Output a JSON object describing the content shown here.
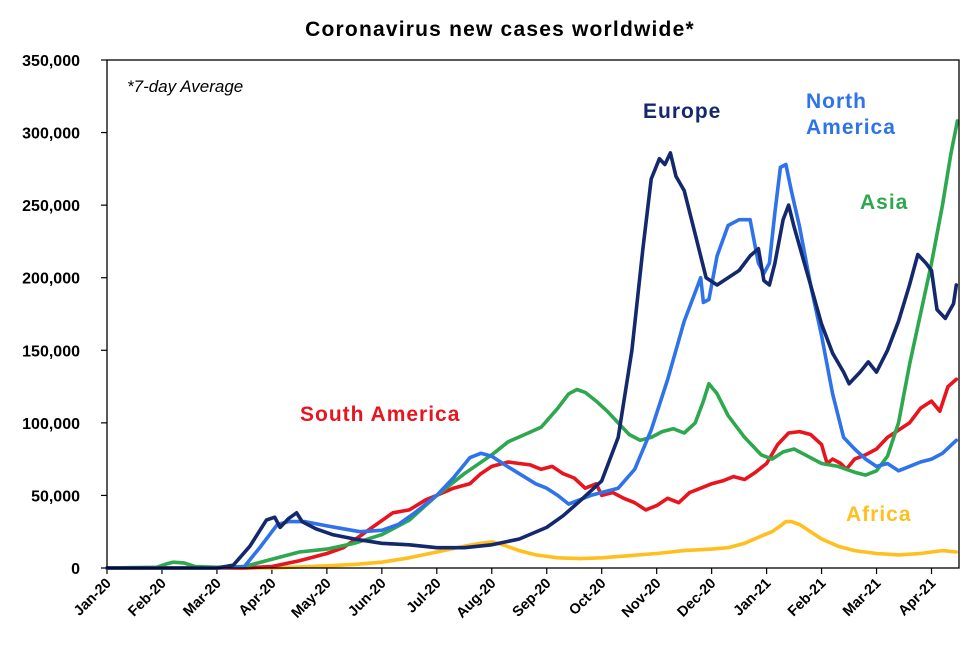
{
  "chart_data": {
    "type": "line",
    "title": "Coronavirus new cases worldwide*",
    "annotation": "*7-day Average",
    "ylim": [
      0,
      350000
    ],
    "yticks": [
      {
        "value": 0,
        "label": "0"
      },
      {
        "value": 50000,
        "label": "50,000"
      },
      {
        "value": 100000,
        "label": "100,000"
      },
      {
        "value": 150000,
        "label": "150,000"
      },
      {
        "value": 200000,
        "label": "200,000"
      },
      {
        "value": 250000,
        "label": "250,000"
      },
      {
        "value": 300000,
        "label": "300,000"
      },
      {
        "value": 350000,
        "label": "350,000"
      }
    ],
    "xlim": [
      0,
      15.5
    ],
    "xticks": [
      {
        "value": 0,
        "label": "Jan-20"
      },
      {
        "value": 1,
        "label": "Feb-20"
      },
      {
        "value": 2,
        "label": "Mar-20"
      },
      {
        "value": 3,
        "label": "Apr-20"
      },
      {
        "value": 4,
        "label": "May-20"
      },
      {
        "value": 5,
        "label": "Jun-20"
      },
      {
        "value": 6,
        "label": "Jul-20"
      },
      {
        "value": 7,
        "label": "Aug-20"
      },
      {
        "value": 8,
        "label": "Sep-20"
      },
      {
        "value": 9,
        "label": "Oct-20"
      },
      {
        "value": 10,
        "label": "Nov-20"
      },
      {
        "value": 11,
        "label": "Dec-20"
      },
      {
        "value": 12,
        "label": "Jan-21"
      },
      {
        "value": 13,
        "label": "Feb-21"
      },
      {
        "value": 14,
        "label": "Mar-21"
      },
      {
        "value": 15,
        "label": "Apr-21"
      }
    ],
    "series": [
      {
        "name": "Europe",
        "color": "#14286e",
        "points": [
          [
            0,
            0
          ],
          [
            1,
            0
          ],
          [
            2,
            0
          ],
          [
            2.3,
            2000
          ],
          [
            2.6,
            15000
          ],
          [
            2.9,
            33000
          ],
          [
            3.05,
            35000
          ],
          [
            3.15,
            28000
          ],
          [
            3.3,
            34000
          ],
          [
            3.45,
            38000
          ],
          [
            3.55,
            32000
          ],
          [
            3.8,
            27000
          ],
          [
            4.1,
            23000
          ],
          [
            4.5,
            20000
          ],
          [
            5,
            17000
          ],
          [
            5.5,
            16000
          ],
          [
            6,
            14000
          ],
          [
            6.5,
            14000
          ],
          [
            7,
            16000
          ],
          [
            7.5,
            20000
          ],
          [
            8,
            28000
          ],
          [
            8.3,
            36000
          ],
          [
            8.6,
            46000
          ],
          [
            9,
            60000
          ],
          [
            9.3,
            90000
          ],
          [
            9.55,
            150000
          ],
          [
            9.75,
            220000
          ],
          [
            9.9,
            268000
          ],
          [
            10.05,
            282000
          ],
          [
            10.15,
            278000
          ],
          [
            10.25,
            286000
          ],
          [
            10.35,
            270000
          ],
          [
            10.5,
            260000
          ],
          [
            10.7,
            230000
          ],
          [
            10.9,
            200000
          ],
          [
            11.1,
            195000
          ],
          [
            11.3,
            200000
          ],
          [
            11.5,
            205000
          ],
          [
            11.7,
            215000
          ],
          [
            11.85,
            220000
          ],
          [
            11.95,
            198000
          ],
          [
            12.05,
            195000
          ],
          [
            12.15,
            210000
          ],
          [
            12.3,
            240000
          ],
          [
            12.4,
            250000
          ],
          [
            12.5,
            235000
          ],
          [
            12.65,
            215000
          ],
          [
            12.8,
            195000
          ],
          [
            13,
            168000
          ],
          [
            13.2,
            148000
          ],
          [
            13.4,
            135000
          ],
          [
            13.5,
            127000
          ],
          [
            13.7,
            135000
          ],
          [
            13.85,
            142000
          ],
          [
            14,
            135000
          ],
          [
            14.2,
            150000
          ],
          [
            14.4,
            170000
          ],
          [
            14.6,
            195000
          ],
          [
            14.75,
            216000
          ],
          [
            14.9,
            210000
          ],
          [
            15,
            205000
          ],
          [
            15.1,
            178000
          ],
          [
            15.25,
            172000
          ],
          [
            15.4,
            182000
          ],
          [
            15.45,
            195000
          ]
        ]
      },
      {
        "name": "North America",
        "color": "#2e73ea",
        "points": [
          [
            0,
            0
          ],
          [
            2,
            0
          ],
          [
            2.5,
            1000
          ],
          [
            2.8,
            15000
          ],
          [
            3,
            25000
          ],
          [
            3.1,
            30000
          ],
          [
            3.3,
            32000
          ],
          [
            3.6,
            32000
          ],
          [
            4,
            29000
          ],
          [
            4.3,
            27000
          ],
          [
            4.6,
            25000
          ],
          [
            5,
            26000
          ],
          [
            5.3,
            30000
          ],
          [
            5.6,
            38000
          ],
          [
            6,
            50000
          ],
          [
            6.3,
            62000
          ],
          [
            6.6,
            76000
          ],
          [
            6.8,
            79000
          ],
          [
            7,
            77000
          ],
          [
            7.2,
            72000
          ],
          [
            7.5,
            65000
          ],
          [
            7.8,
            58000
          ],
          [
            8,
            55000
          ],
          [
            8.2,
            50000
          ],
          [
            8.4,
            44000
          ],
          [
            8.6,
            47000
          ],
          [
            8.8,
            50000
          ],
          [
            9,
            52000
          ],
          [
            9.3,
            55000
          ],
          [
            9.6,
            68000
          ],
          [
            9.9,
            95000
          ],
          [
            10.2,
            130000
          ],
          [
            10.5,
            170000
          ],
          [
            10.7,
            190000
          ],
          [
            10.8,
            200000
          ],
          [
            10.85,
            183000
          ],
          [
            10.95,
            185000
          ],
          [
            11.1,
            215000
          ],
          [
            11.3,
            236000
          ],
          [
            11.5,
            240000
          ],
          [
            11.7,
            240000
          ],
          [
            11.85,
            210000
          ],
          [
            11.95,
            203000
          ],
          [
            12.05,
            210000
          ],
          [
            12.15,
            245000
          ],
          [
            12.25,
            276000
          ],
          [
            12.35,
            278000
          ],
          [
            12.45,
            260000
          ],
          [
            12.6,
            235000
          ],
          [
            12.8,
            195000
          ],
          [
            13,
            160000
          ],
          [
            13.2,
            120000
          ],
          [
            13.4,
            90000
          ],
          [
            13.6,
            82000
          ],
          [
            13.8,
            75000
          ],
          [
            14,
            70000
          ],
          [
            14.2,
            72000
          ],
          [
            14.4,
            67000
          ],
          [
            14.6,
            70000
          ],
          [
            14.8,
            73000
          ],
          [
            15,
            75000
          ],
          [
            15.2,
            79000
          ],
          [
            15.45,
            88000
          ]
        ]
      },
      {
        "name": "Asia",
        "color": "#2ea84e",
        "points": [
          [
            0,
            0
          ],
          [
            0.9,
            500
          ],
          [
            1.1,
            3000
          ],
          [
            1.2,
            4000
          ],
          [
            1.4,
            3500
          ],
          [
            1.6,
            1000
          ],
          [
            2,
            500
          ],
          [
            2.5,
            1000
          ],
          [
            3,
            6000
          ],
          [
            3.5,
            11000
          ],
          [
            4,
            13000
          ],
          [
            4.5,
            17000
          ],
          [
            5,
            23000
          ],
          [
            5.5,
            33000
          ],
          [
            6,
            50000
          ],
          [
            6.5,
            65000
          ],
          [
            7,
            78000
          ],
          [
            7.3,
            87000
          ],
          [
            7.6,
            92000
          ],
          [
            7.9,
            97000
          ],
          [
            8.2,
            110000
          ],
          [
            8.4,
            120000
          ],
          [
            8.55,
            123000
          ],
          [
            8.7,
            121000
          ],
          [
            8.9,
            115000
          ],
          [
            9.1,
            108000
          ],
          [
            9.3,
            100000
          ],
          [
            9.5,
            92000
          ],
          [
            9.7,
            88000
          ],
          [
            9.9,
            90000
          ],
          [
            10.1,
            94000
          ],
          [
            10.3,
            96000
          ],
          [
            10.5,
            93000
          ],
          [
            10.7,
            100000
          ],
          [
            10.85,
            115000
          ],
          [
            10.95,
            127000
          ],
          [
            11.1,
            120000
          ],
          [
            11.3,
            105000
          ],
          [
            11.6,
            90000
          ],
          [
            11.9,
            78000
          ],
          [
            12.1,
            75000
          ],
          [
            12.3,
            80000
          ],
          [
            12.5,
            82000
          ],
          [
            12.7,
            78000
          ],
          [
            13,
            72000
          ],
          [
            13.3,
            70000
          ],
          [
            13.6,
            66000
          ],
          [
            13.8,
            64000
          ],
          [
            14,
            67000
          ],
          [
            14.2,
            77000
          ],
          [
            14.4,
            100000
          ],
          [
            14.6,
            140000
          ],
          [
            14.8,
            175000
          ],
          [
            15,
            210000
          ],
          [
            15.2,
            250000
          ],
          [
            15.35,
            285000
          ],
          [
            15.47,
            308000
          ]
        ]
      },
      {
        "name": "South America",
        "color": "#e8141e",
        "points": [
          [
            0,
            0
          ],
          [
            2.5,
            0
          ],
          [
            3,
            1000
          ],
          [
            3.5,
            5000
          ],
          [
            4,
            10000
          ],
          [
            4.3,
            14000
          ],
          [
            4.6,
            22000
          ],
          [
            4.9,
            30000
          ],
          [
            5.2,
            38000
          ],
          [
            5.5,
            40000
          ],
          [
            5.8,
            47000
          ],
          [
            6,
            50000
          ],
          [
            6.3,
            55000
          ],
          [
            6.6,
            58000
          ],
          [
            6.8,
            65000
          ],
          [
            7,
            70000
          ],
          [
            7.3,
            73000
          ],
          [
            7.5,
            72000
          ],
          [
            7.7,
            71000
          ],
          [
            7.9,
            68000
          ],
          [
            8.1,
            70000
          ],
          [
            8.3,
            65000
          ],
          [
            8.5,
            62000
          ],
          [
            8.7,
            55000
          ],
          [
            8.9,
            58000
          ],
          [
            9,
            50000
          ],
          [
            9.2,
            52000
          ],
          [
            9.4,
            48000
          ],
          [
            9.6,
            45000
          ],
          [
            9.8,
            40000
          ],
          [
            10,
            43000
          ],
          [
            10.2,
            48000
          ],
          [
            10.4,
            45000
          ],
          [
            10.6,
            52000
          ],
          [
            10.8,
            55000
          ],
          [
            11,
            58000
          ],
          [
            11.2,
            60000
          ],
          [
            11.4,
            63000
          ],
          [
            11.6,
            61000
          ],
          [
            11.8,
            66000
          ],
          [
            12,
            72000
          ],
          [
            12.2,
            85000
          ],
          [
            12.4,
            93000
          ],
          [
            12.6,
            94000
          ],
          [
            12.8,
            92000
          ],
          [
            13,
            85000
          ],
          [
            13.1,
            72000
          ],
          [
            13.2,
            75000
          ],
          [
            13.35,
            72000
          ],
          [
            13.45,
            68000
          ],
          [
            13.6,
            75000
          ],
          [
            13.8,
            78000
          ],
          [
            14,
            82000
          ],
          [
            14.2,
            90000
          ],
          [
            14.4,
            95000
          ],
          [
            14.6,
            100000
          ],
          [
            14.8,
            110000
          ],
          [
            15,
            115000
          ],
          [
            15.15,
            108000
          ],
          [
            15.3,
            125000
          ],
          [
            15.45,
            130000
          ]
        ]
      },
      {
        "name": "Africa",
        "color": "#ffbf1f",
        "points": [
          [
            0,
            0
          ],
          [
            3,
            0
          ],
          [
            4,
            1500
          ],
          [
            4.5,
            2500
          ],
          [
            5,
            4000
          ],
          [
            5.5,
            7000
          ],
          [
            6,
            11000
          ],
          [
            6.5,
            15000
          ],
          [
            6.8,
            17000
          ],
          [
            7,
            18000
          ],
          [
            7.2,
            16000
          ],
          [
            7.5,
            12000
          ],
          [
            7.8,
            9000
          ],
          [
            8.2,
            7000
          ],
          [
            8.6,
            6500
          ],
          [
            9,
            7000
          ],
          [
            9.5,
            8500
          ],
          [
            10,
            10000
          ],
          [
            10.5,
            12000
          ],
          [
            11,
            13000
          ],
          [
            11.3,
            14000
          ],
          [
            11.6,
            17000
          ],
          [
            11.9,
            22000
          ],
          [
            12.1,
            25000
          ],
          [
            12.25,
            29000
          ],
          [
            12.35,
            32000
          ],
          [
            12.45,
            32000
          ],
          [
            12.6,
            30000
          ],
          [
            12.8,
            25000
          ],
          [
            13,
            20000
          ],
          [
            13.3,
            15000
          ],
          [
            13.6,
            12000
          ],
          [
            14,
            10000
          ],
          [
            14.4,
            9000
          ],
          [
            14.8,
            10000
          ],
          [
            15,
            11000
          ],
          [
            15.2,
            12000
          ],
          [
            15.45,
            11000
          ]
        ]
      }
    ],
    "labels": [
      {
        "text": "Europe",
        "color": "#14286e"
      },
      {
        "text": "North",
        "color": "#2e73ea"
      },
      {
        "text": "America",
        "color": "#2e73ea"
      },
      {
        "text": "Asia",
        "color": "#2ea84e"
      },
      {
        "text": "South America",
        "color": "#e8141e"
      },
      {
        "text": "Africa",
        "color": "#ffbf1f"
      }
    ]
  }
}
